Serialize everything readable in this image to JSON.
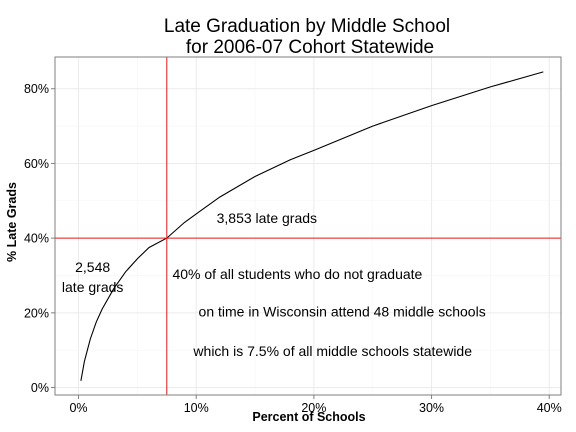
{
  "chart_data": {
    "type": "line",
    "title": [
      "Late Graduation by Middle School",
      "for 2006-07 Cohort Statewide"
    ],
    "xlabel": "Percent of Schools",
    "ylabel": "% Late Grads",
    "xlim": [
      -0.02,
      0.41
    ],
    "ylim": [
      -0.02,
      0.885
    ],
    "x_ticks": [
      0,
      0.1,
      0.2,
      0.3,
      0.4
    ],
    "x_tick_labels": [
      "0%",
      "10%",
      "20%",
      "30%",
      "40%"
    ],
    "y_ticks": [
      0,
      0.2,
      0.4,
      0.6,
      0.8
    ],
    "y_tick_labels": [
      "0%",
      "20%",
      "40%",
      "60%",
      "80%"
    ],
    "grid": true,
    "series": [
      {
        "color": "#000000",
        "x": [
          0.002,
          0.005,
          0.01,
          0.015,
          0.02,
          0.03,
          0.04,
          0.05,
          0.06,
          0.075,
          0.09,
          0.1,
          0.12,
          0.15,
          0.18,
          0.2,
          0.25,
          0.3,
          0.35,
          0.395
        ],
        "y": [
          0.018,
          0.07,
          0.13,
          0.175,
          0.21,
          0.265,
          0.31,
          0.345,
          0.375,
          0.4,
          0.442,
          0.465,
          0.51,
          0.565,
          0.61,
          0.635,
          0.7,
          0.755,
          0.805,
          0.845
        ]
      }
    ],
    "reference_lines": [
      {
        "axis": "x",
        "value": 0.075,
        "color": "#e41a1c"
      },
      {
        "axis": "y",
        "value": 0.4,
        "color": "#e41a1c"
      }
    ],
    "annotations": [
      {
        "lines": [
          "2,548",
          "late grads"
        ],
        "x": 0.012,
        "y": 0.31
      },
      {
        "lines": [
          "3,853 late grads"
        ],
        "x": 0.16,
        "y": 0.44
      },
      {
        "lines": [
          "40% of all students who do not graduate"
        ],
        "x": 0.186,
        "y": 0.29
      },
      {
        "lines": [
          "on time in Wisconsin attend 48 middle schools"
        ],
        "x": 0.224,
        "y": 0.19
      },
      {
        "lines": [
          "which is 7.5% of all middle schools statewide"
        ],
        "x": 0.216,
        "y": 0.085
      }
    ]
  }
}
